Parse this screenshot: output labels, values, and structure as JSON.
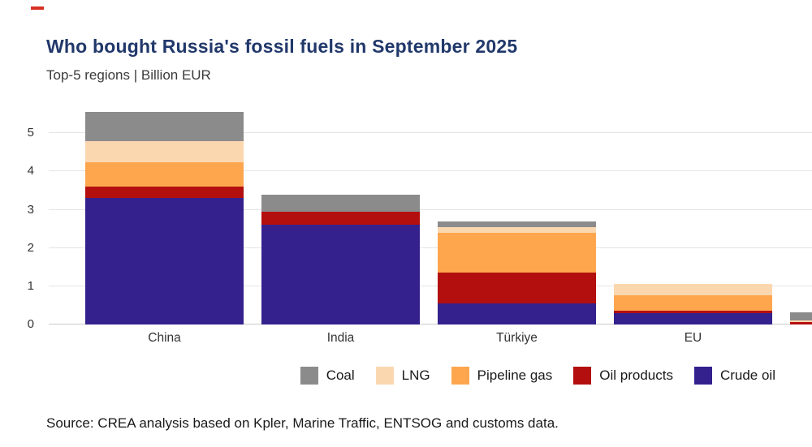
{
  "brand_mark_color": "#d93025",
  "header": {
    "title": "Who bought Russia's fossil fuels in September 2025",
    "subtitle": "Top-5 regions | Billion EUR"
  },
  "chart_data": {
    "type": "bar",
    "stacked": true,
    "title": "Who bought Russia's fossil fuels in September 2025",
    "subtitle": "Top-5 regions | Billion EUR",
    "categories": [
      "China",
      "India",
      "Türkiye",
      "EU",
      ""
    ],
    "series": [
      {
        "name": "Crude oil",
        "color": "#35218d",
        "values": [
          3.3,
          2.6,
          0.55,
          0.3,
          0
        ]
      },
      {
        "name": "Oil products",
        "color": "#b30f0f",
        "values": [
          0.3,
          0.35,
          0.8,
          0.07,
          0.06
        ]
      },
      {
        "name": "Pipeline gas",
        "color": "#fda64e",
        "values": [
          0.65,
          0,
          1.05,
          0.4,
          0
        ]
      },
      {
        "name": "LNG",
        "color": "#fbd7b0",
        "values": [
          0.55,
          0,
          0.15,
          0.3,
          0.05
        ]
      },
      {
        "name": "Coal",
        "color": "#8b8b8b",
        "values": [
          0.75,
          0.45,
          0.15,
          0,
          0.2
        ]
      }
    ],
    "legend_order": [
      "Coal",
      "LNG",
      "Pipeline gas",
      "Oil products",
      "Crude oil"
    ],
    "ylim": [
      0,
      5.6
    ],
    "yticks": [
      0,
      1,
      2,
      3,
      4,
      5
    ],
    "grid": true,
    "legend_position": "bottom"
  },
  "source": "Source: CREA analysis based on Kpler, Marine Traffic, ENTSOG and customs data."
}
